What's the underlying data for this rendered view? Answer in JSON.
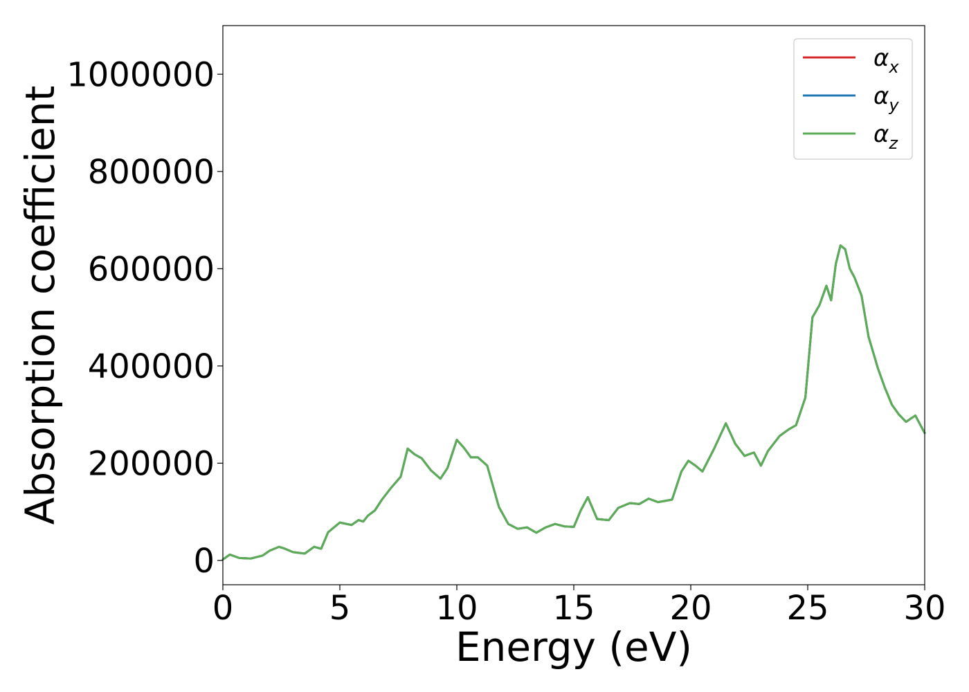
{
  "chart_data": {
    "type": "line",
    "xlabel": "Energy (eV)",
    "ylabel": "Absorption coefficient",
    "xlim": [
      0,
      30
    ],
    "ylim": [
      -50000,
      1100000
    ],
    "xticks": [
      "0",
      "5",
      "10",
      "15",
      "20",
      "25",
      "30"
    ],
    "yticks": [
      "0",
      "200000",
      "400000",
      "600000",
      "800000",
      "1000000"
    ],
    "grid": false,
    "legend_position": "top-right",
    "series": [
      {
        "name": "α",
        "subscript": "x",
        "color": "#d62728",
        "shared_values_with": "z"
      },
      {
        "name": "α",
        "subscript": "y",
        "color": "#1f77b4",
        "shared_values_with": "z"
      },
      {
        "name": "α",
        "subscript": "z",
        "color": "#5aad55"
      }
    ],
    "x": [
      0,
      0.3,
      0.7,
      1.2,
      1.7,
      2.0,
      2.4,
      2.6,
      3.0,
      3.5,
      3.9,
      4.2,
      4.5,
      5.0,
      5.5,
      5.8,
      6.0,
      6.2,
      6.5,
      6.8,
      7.2,
      7.6,
      7.9,
      8.2,
      8.5,
      8.9,
      9.3,
      9.6,
      10.0,
      10.3,
      10.6,
      10.9,
      11.3,
      11.8,
      12.2,
      12.6,
      13.0,
      13.4,
      13.8,
      14.2,
      14.6,
      15.0,
      15.3,
      15.6,
      16.0,
      16.5,
      16.9,
      17.4,
      17.8,
      18.2,
      18.6,
      19.2,
      19.6,
      19.9,
      20.2,
      20.5,
      21.0,
      21.5,
      21.9,
      22.3,
      22.7,
      23.0,
      23.3,
      23.8,
      24.2,
      24.5,
      24.9,
      25.2,
      25.5,
      25.8,
      26.0,
      26.2,
      26.4,
      26.6,
      26.8,
      27.0,
      27.3,
      27.6,
      28.0,
      28.3,
      28.6,
      28.9,
      29.2,
      29.6,
      30.0
    ],
    "y": [
      2000,
      12000,
      5000,
      4000,
      10000,
      20000,
      28000,
      25000,
      17000,
      14000,
      28000,
      24000,
      58000,
      78000,
      73000,
      83000,
      80000,
      92000,
      103000,
      125000,
      150000,
      172000,
      230000,
      218000,
      210000,
      185000,
      168000,
      190000,
      248000,
      232000,
      212000,
      212000,
      195000,
      110000,
      75000,
      65000,
      68000,
      57000,
      68000,
      75000,
      70000,
      69000,
      103000,
      130000,
      85000,
      83000,
      108000,
      118000,
      116000,
      127000,
      120000,
      125000,
      183000,
      205000,
      195000,
      183000,
      230000,
      282000,
      240000,
      215000,
      222000,
      195000,
      225000,
      256000,
      270000,
      278000,
      335000,
      500000,
      525000,
      565000,
      535000,
      610000,
      648000,
      640000,
      600000,
      582000,
      545000,
      460000,
      395000,
      355000,
      320000,
      300000,
      285000,
      298000,
      262000
    ]
  }
}
